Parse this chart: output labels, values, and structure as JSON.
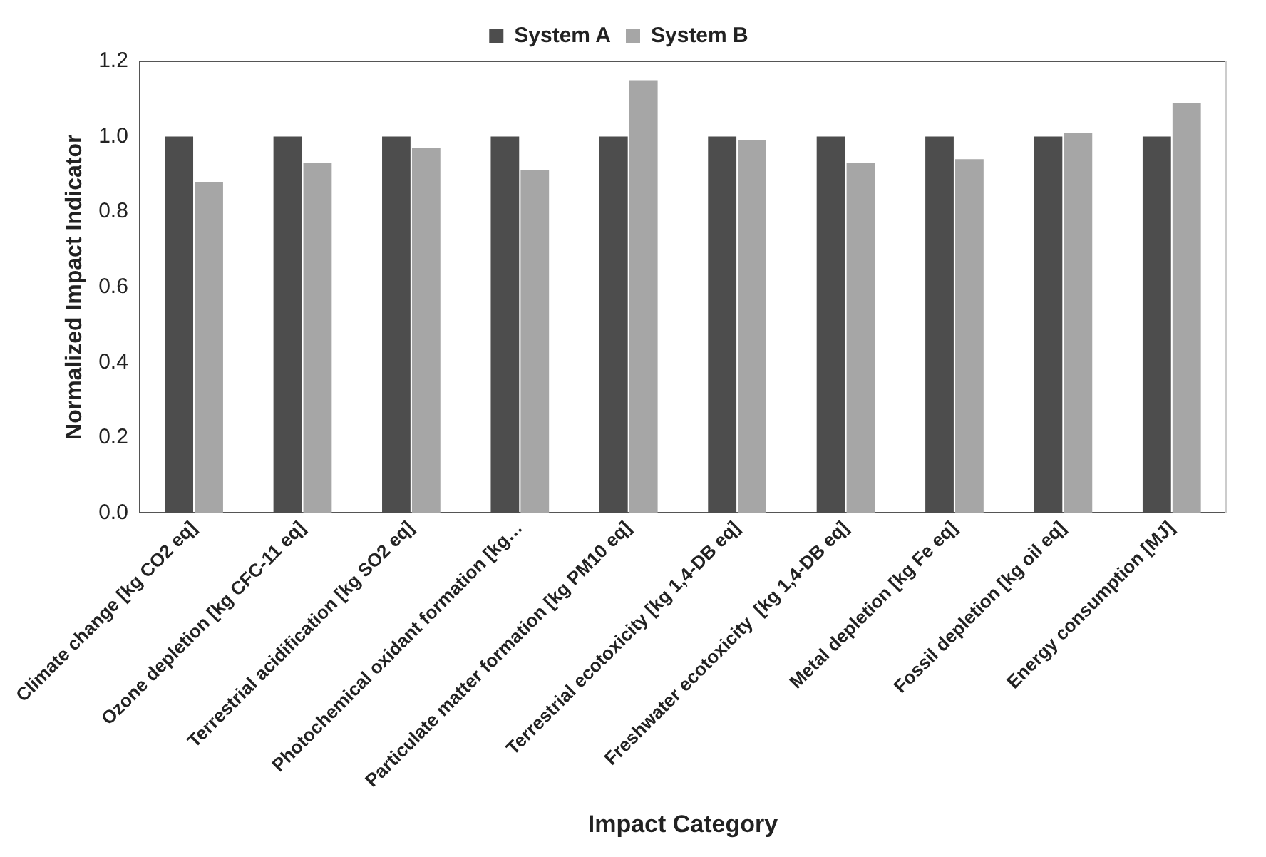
{
  "chart_data": {
    "type": "bar",
    "xlabel": "Impact Category",
    "ylabel": "Normalized Impact Indicator",
    "categories": [
      "Climate change [kg CO2 eq]",
      "Ozone depletion [kg CFC-11 eq]",
      "Terrestrial acidification [kg SO2 eq]",
      "Photochemical oxidant formation [kg…",
      "Particulate matter formation [kg PM10 eq]",
      "Terrestrial ecotoxicity [kg 1,4-DB eq]",
      "Freshwater ecotoxicity  [kg 1,4-DB eq]",
      "Metal depletion [kg Fe eq]",
      "Fossil depletion [kg oil eq]",
      "Energy consumption [MJ]"
    ],
    "series": [
      {
        "name": "System A",
        "color": "#4d4d4d",
        "values": [
          1.0,
          1.0,
          1.0,
          1.0,
          1.0,
          1.0,
          1.0,
          1.0,
          1.0,
          1.0
        ]
      },
      {
        "name": "System B",
        "color": "#a6a6a6",
        "values": [
          0.88,
          0.93,
          0.97,
          0.91,
          1.15,
          0.99,
          0.93,
          0.94,
          1.01,
          1.09
        ]
      }
    ],
    "ylim": [
      0,
      1.2
    ],
    "yticks": [
      {
        "value": 0,
        "label": "0.0"
      },
      {
        "value": 0.2,
        "label": "0.2"
      },
      {
        "value": 0.4,
        "label": "0.4"
      },
      {
        "value": 0.6,
        "label": "0.6"
      },
      {
        "value": 0.8,
        "label": "0.8"
      },
      {
        "value": 1,
        "label": "1.0"
      },
      {
        "value": 1.2,
        "label": "1.2"
      }
    ],
    "grid": false,
    "legend": "top"
  }
}
